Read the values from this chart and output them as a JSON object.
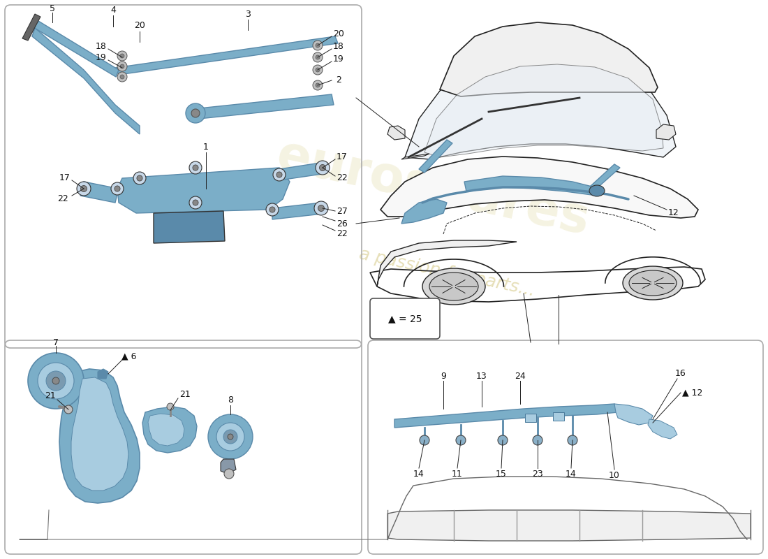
{
  "bg_color": "#ffffff",
  "part_color": "#7baec8",
  "part_color2": "#a8cce0",
  "part_dark": "#5a8aaa",
  "line_color": "#222222",
  "label_color": "#111111",
  "panel_ec": "#aaaaaa",
  "watermark1": "#d4c87a",
  "watermark2": "#c8b860"
}
